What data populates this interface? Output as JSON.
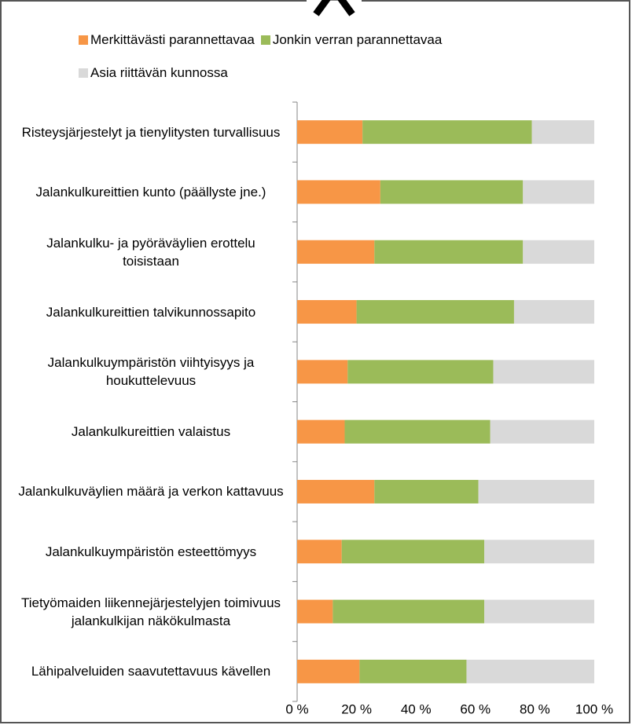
{
  "chart_data": {
    "type": "stacked-barh",
    "categories": [
      "Risteysjärjestelyt ja tienylitysten turvallisuus",
      "Jalankulkureittien kunto (päällyste jne.)",
      "Jalankulku- ja pyöräväylien erottelu toisistaan",
      "Jalankulkureittien talvikunnossapito",
      "Jalankulkuympäristön viihtyisyys ja houkuttelevuus",
      "Jalankulkureittien valaistus",
      "Jalankulkuväylien määrä ja verkon kattavuus",
      "Jalankulkuympäristön esteettömyys",
      "Tietyömaiden liikennejärjestelyjen toimivuus jalankulkijan näkökulmasta",
      "Lähipalveluiden saavutettavuus kävellen"
    ],
    "series": [
      {
        "name": "Merkittävästi parannettavaa",
        "color": "#f79646",
        "values": [
          22,
          28,
          26,
          20,
          17,
          16,
          26,
          15,
          12,
          21
        ]
      },
      {
        "name": "Jonkin verran parannettavaa",
        "color": "#9bbb59",
        "values": [
          57,
          48,
          50,
          53,
          49,
          49,
          35,
          48,
          51,
          36
        ]
      },
      {
        "name": "Asia riittävän kunnossa",
        "color": "#d9d9d9",
        "values": [
          21,
          24,
          24,
          27,
          34,
          35,
          39,
          37,
          37,
          43
        ]
      }
    ],
    "xlim": [
      0,
      100
    ],
    "xticks": [
      {
        "value": 0,
        "label": "0 %"
      },
      {
        "value": 20,
        "label": "20 %"
      },
      {
        "value": 40,
        "label": "40 %"
      },
      {
        "value": 60,
        "label": "60 %"
      },
      {
        "value": 80,
        "label": "80 %"
      },
      {
        "value": 100,
        "label": "100 %"
      }
    ],
    "legend": "top"
  }
}
